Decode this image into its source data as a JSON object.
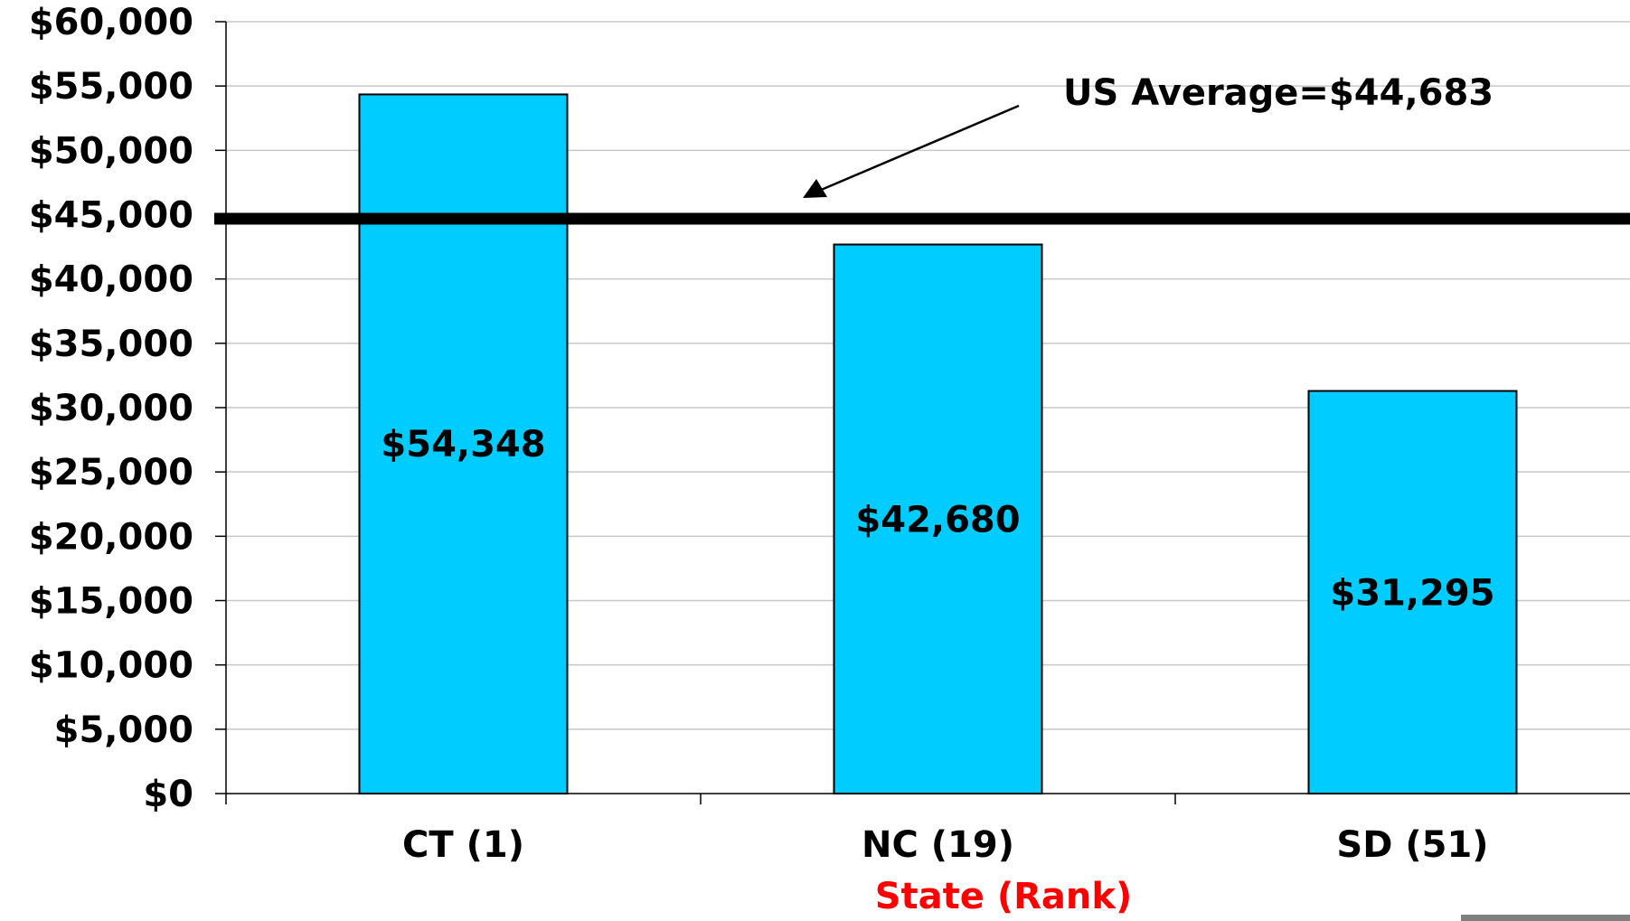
{
  "chart_data": {
    "type": "bar",
    "categories": [
      "CT (1)",
      "NC (19)",
      "SD (51)"
    ],
    "values": [
      54348,
      42680,
      31295
    ],
    "data_labels": [
      "$54,348",
      "$42,680",
      "$31,295"
    ],
    "title": "",
    "xlabel": "State (Rank)",
    "ylabel": "",
    "ylim": [
      0,
      60000
    ],
    "yticks": [
      0,
      5000,
      10000,
      15000,
      20000,
      25000,
      30000,
      35000,
      40000,
      45000,
      50000,
      55000,
      60000
    ],
    "ytick_labels": [
      "$0",
      "$5,000",
      "$10,000",
      "$15,000",
      "$20,000",
      "$25,000",
      "$30,000",
      "$35,000",
      "$40,000",
      "$45,000",
      "$50,000",
      "$55,000",
      "$60,000"
    ],
    "grid": true,
    "reference_line": {
      "value": 44683,
      "label": "US Average=$44,683"
    },
    "colors": {
      "bar": "#00ccff",
      "bar_edge": "#000000",
      "line": "#000000",
      "xlabel": "#ff0000",
      "grid": "#c8c8c8"
    }
  }
}
